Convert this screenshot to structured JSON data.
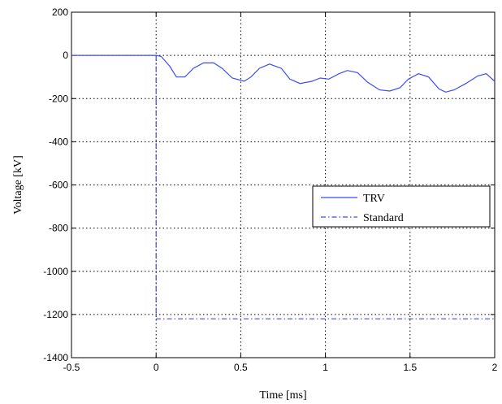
{
  "chart_data": {
    "type": "line",
    "title": "",
    "xlabel": "Time [ms]",
    "ylabel": "Voltage [kV]",
    "xlim": [
      -0.5,
      2
    ],
    "ylim": [
      -1400,
      200
    ],
    "xticks": [
      -0.5,
      0,
      0.5,
      1,
      1.5,
      2
    ],
    "xtick_labels": [
      "-0.5",
      "0",
      "0.5",
      "1",
      "1.5",
      "2"
    ],
    "yticks": [
      200,
      0,
      -200,
      -400,
      -600,
      -800,
      -1000,
      -1200,
      -1400
    ],
    "ytick_labels": [
      "200",
      "0",
      "-200",
      "-400",
      "-600",
      "-800",
      "-1000",
      "-1200",
      "-1400"
    ],
    "grid": true,
    "legend_position": "center-right",
    "series": [
      {
        "name": "TRV",
        "style": "solid",
        "color": "#3b4cf0",
        "x": [
          -0.5,
          0,
          0.03,
          0.08,
          0.12,
          0.17,
          0.22,
          0.28,
          0.34,
          0.39,
          0.45,
          0.52,
          0.56,
          0.61,
          0.67,
          0.74,
          0.79,
          0.85,
          0.92,
          0.97,
          1.02,
          1.08,
          1.13,
          1.19,
          1.25,
          1.32,
          1.38,
          1.44,
          1.49,
          1.55,
          1.61,
          1.67,
          1.71,
          1.76,
          1.83,
          1.9,
          1.95,
          2.0
        ],
        "y": [
          0,
          0,
          -5,
          -50,
          -100,
          -100,
          -60,
          -35,
          -35,
          -60,
          -105,
          -120,
          -100,
          -60,
          -40,
          -60,
          -110,
          -130,
          -120,
          -105,
          -110,
          -85,
          -70,
          -80,
          -125,
          -160,
          -165,
          -150,
          -110,
          -85,
          -100,
          -155,
          -170,
          -160,
          -130,
          -95,
          -85,
          -120
        ]
      },
      {
        "name": "Standard",
        "style": "dashdot",
        "color": "#3b4cf0",
        "x": [
          0.0,
          0.0,
          0.02,
          2.0
        ],
        "y": [
          0,
          -1220,
          -1220,
          -1220
        ]
      }
    ]
  }
}
